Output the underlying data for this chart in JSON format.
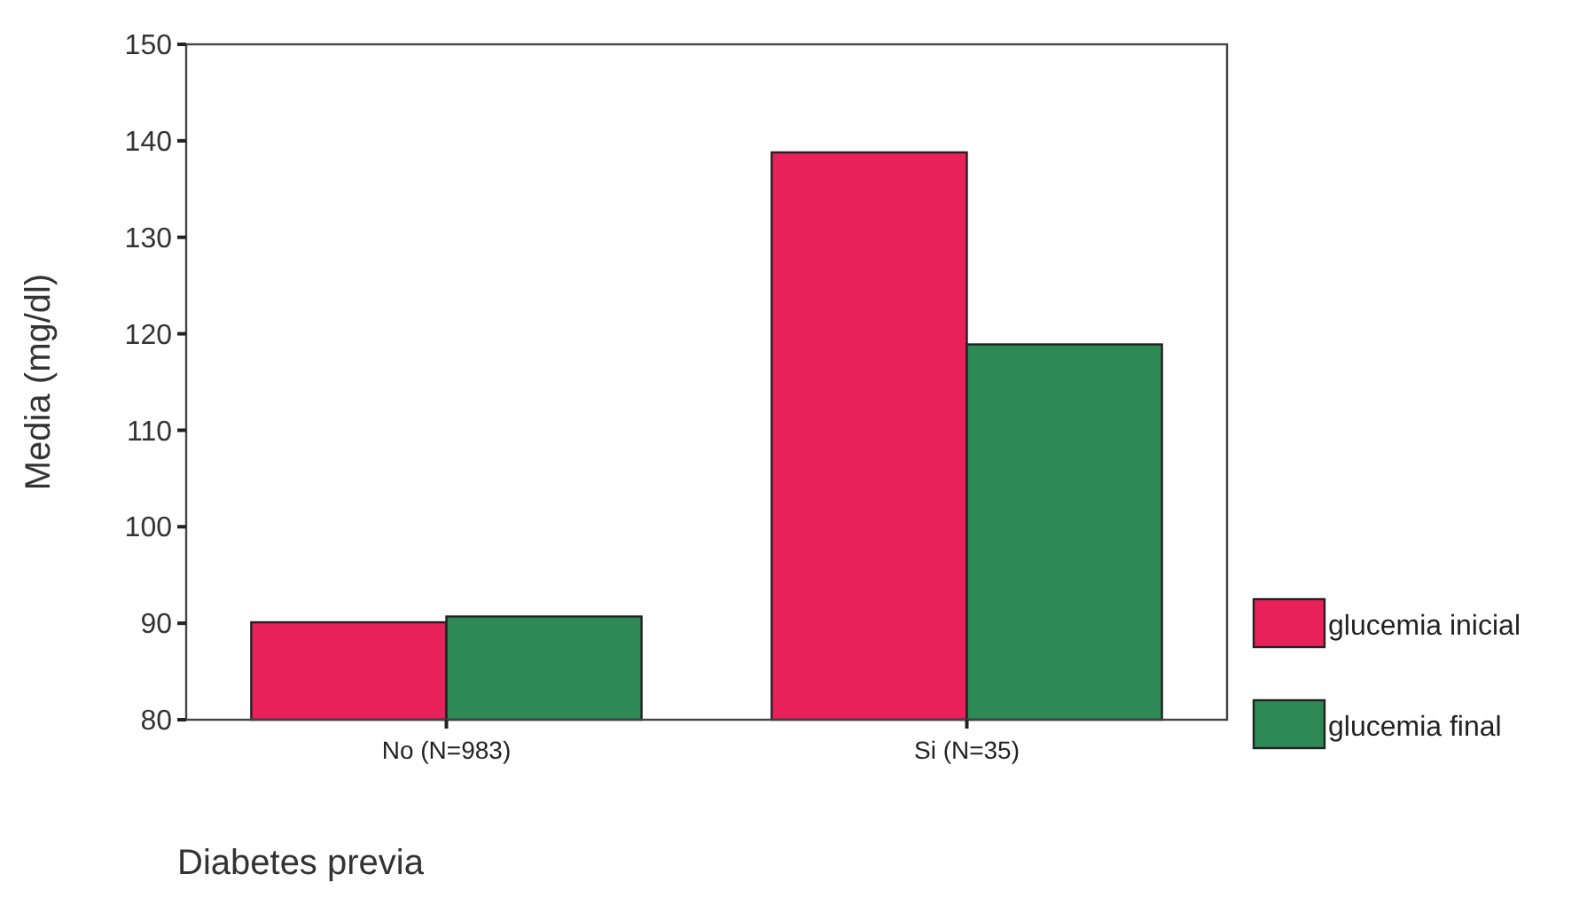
{
  "chart_data": {
    "type": "bar",
    "xlabel": "Diabetes previa",
    "ylabel": "Media (mg/dl)",
    "categories": [
      "No (N=983)",
      "Si (N=35)"
    ],
    "series": [
      {
        "name": "glucemia inicial",
        "color": "#e8215a",
        "values": [
          90.1,
          138.8
        ]
      },
      {
        "name": "glucemia final",
        "color": "#2e8a55",
        "values": [
          90.7,
          118.9
        ]
      }
    ],
    "ylim": [
      80,
      150
    ],
    "yticks": [
      80,
      90,
      100,
      110,
      120,
      130,
      140,
      150
    ],
    "legend": "right",
    "grid": false
  }
}
